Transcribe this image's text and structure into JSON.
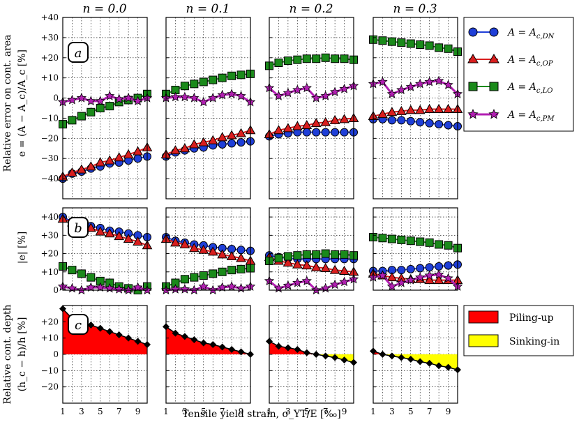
{
  "figure": {
    "column_titles": [
      "n = 0.0",
      "n = 0.1",
      "n = 0.2",
      "n = 0.3"
    ],
    "xlabel": "Tensile yield strain, σ_YT/E [‰]",
    "xticks": [
      "1",
      "3",
      "5",
      "7",
      "9"
    ],
    "colors": {
      "DN": "#1f3fd8",
      "OP": "#d91e1e",
      "LO": "#1a8a1a",
      "PM": "#b21fb2",
      "pile": "#ff0000",
      "sink": "#ffff00"
    }
  },
  "chart_data": [
    {
      "type": "line",
      "panel": "a",
      "ylabel_line1": "Relative error on cont. area",
      "ylabel_line2": "e = (A − A_c)/A_c [%]",
      "ylim": [
        -50,
        40
      ],
      "yticks": [
        "+40",
        "+30",
        "+20",
        "+10",
        "0",
        "−10",
        "−20",
        "−30",
        "−40"
      ],
      "ytick_values": [
        40,
        30,
        20,
        10,
        0,
        -10,
        -20,
        -30,
        -40
      ],
      "x": [
        1,
        2,
        3,
        4,
        5,
        6,
        7,
        8,
        9,
        10
      ],
      "grid": true,
      "legend_position": "right",
      "series": [
        {
          "name": "A = A_c,DN",
          "key": "DN",
          "values": [
            [
              -40,
              -37.5,
              -36.5,
              -35,
              -34,
              -32.5,
              -32,
              -31,
              -30,
              -29
            ],
            [
              -29,
              -27,
              -26,
              -25,
              -24.5,
              -23.5,
              -23,
              -22.5,
              -22,
              -21.5
            ],
            [
              -19,
              -18,
              -17.5,
              -17,
              -17,
              -17,
              -17,
              -17,
              -17,
              -17
            ],
            [
              -10.5,
              -10.5,
              -11,
              -11,
              -11.5,
              -12,
              -12.5,
              -13,
              -13.5,
              -14
            ]
          ]
        },
        {
          "name": "A = A_c,OP",
          "key": "OP",
          "values": [
            [
              -39,
              -37,
              -35.5,
              -34,
              -32,
              -31,
              -29.5,
              -28,
              -26.5,
              -24.5
            ],
            [
              -28,
              -26,
              -25,
              -23,
              -22,
              -21,
              -19.5,
              -18.5,
              -17.5,
              -16
            ],
            [
              -18,
              -16,
              -15,
              -14,
              -13.5,
              -12.5,
              -12,
              -11,
              -10.5,
              -10
            ],
            [
              -9,
              -8,
              -7,
              -6.5,
              -6,
              -6,
              -5.5,
              -5.5,
              -5.5,
              -5.5
            ]
          ]
        },
        {
          "name": "A = A_c,LO",
          "key": "LO",
          "values": [
            [
              -13,
              -11,
              -9,
              -7,
              -5,
              -4,
              -2,
              -1,
              0,
              2
            ],
            [
              2,
              4,
              6,
              7,
              8,
              9,
              10,
              11,
              11.5,
              12
            ],
            [
              16,
              17.5,
              18.5,
              19,
              19.5,
              19.5,
              20,
              19.5,
              19.5,
              19
            ],
            [
              29,
              28.5,
              28,
              27.5,
              27,
              26.5,
              26,
              25,
              24.5,
              23
            ]
          ]
        },
        {
          "name": "A = A_c,PM",
          "key": "PM",
          "values": [
            [
              -2,
              -1,
              0,
              -1.5,
              -1.5,
              1,
              -0.5,
              0,
              -1.5,
              0
            ],
            [
              0,
              0.5,
              0.5,
              0,
              -2,
              0,
              1.5,
              2,
              1,
              -2
            ],
            [
              5,
              1,
              2.5,
              4,
              5,
              0,
              1,
              3,
              4.5,
              6
            ],
            [
              7,
              8,
              2,
              4,
              5.5,
              7,
              8,
              8.5,
              6.5,
              2
            ]
          ]
        }
      ]
    },
    {
      "type": "line",
      "panel": "b",
      "ylabel": "|e| [%]",
      "ylim": [
        0,
        45
      ],
      "yticks": [
        "+40",
        "+30",
        "+20",
        "+10",
        "0"
      ],
      "ytick_values": [
        40,
        30,
        20,
        10,
        0
      ],
      "x": [
        1,
        2,
        3,
        4,
        5,
        6,
        7,
        8,
        9,
        10
      ],
      "grid": true,
      "series": [
        {
          "key": "DN",
          "values": [
            [
              40,
              37.5,
              36.5,
              35,
              34,
              32.5,
              32,
              31,
              30,
              29
            ],
            [
              29,
              27,
              26,
              25,
              24.5,
              23.5,
              23,
              22.5,
              22,
              21.5
            ],
            [
              19,
              18,
              17.5,
              17,
              17,
              17,
              17,
              17,
              17,
              17
            ],
            [
              10.5,
              10.5,
              11,
              11,
              11.5,
              12,
              12.5,
              13,
              13.5,
              14
            ]
          ]
        },
        {
          "key": "OP",
          "values": [
            [
              39,
              37,
              35.5,
              34,
              32,
              31,
              29.5,
              28,
              26.5,
              24.5
            ],
            [
              28,
              26,
              25,
              23,
              22,
              21,
              19.5,
              18.5,
              17.5,
              16
            ],
            [
              18,
              16,
              15,
              14,
              13.5,
              12.5,
              12,
              11,
              10.5,
              10
            ],
            [
              9,
              8,
              7,
              6.5,
              6,
              6,
              5.5,
              5.5,
              5.5,
              5.5
            ]
          ]
        },
        {
          "key": "LO",
          "values": [
            [
              13,
              11,
              9,
              7,
              5,
              4,
              2,
              1,
              0,
              2
            ],
            [
              2,
              4,
              6,
              7,
              8,
              9,
              10,
              11,
              11.5,
              12
            ],
            [
              16,
              17.5,
              18.5,
              19,
              19.5,
              19.5,
              20,
              19.5,
              19.5,
              19
            ],
            [
              29,
              28.5,
              28,
              27.5,
              27,
              26.5,
              26,
              25,
              24.5,
              23
            ]
          ]
        },
        {
          "key": "PM",
          "values": [
            [
              2,
              1,
              0,
              1.5,
              1.5,
              1,
              0.5,
              0,
              1.5,
              0
            ],
            [
              0,
              0.5,
              0.5,
              0,
              2,
              0,
              1.5,
              2,
              1,
              2
            ],
            [
              5,
              1,
              2.5,
              4,
              5,
              0,
              1,
              3,
              4.5,
              6
            ],
            [
              7,
              8,
              2,
              4,
              5.5,
              7,
              8,
              8.5,
              6.5,
              2
            ]
          ]
        }
      ]
    },
    {
      "type": "area",
      "panel": "c",
      "ylabel_line1": "Relative cont. depth",
      "ylabel_line2": "(h_c − h)/h [%]",
      "ylim": [
        -30,
        30
      ],
      "yticks": [
        "+20",
        "+10",
        "0",
        "−10",
        "−20"
      ],
      "ytick_values": [
        20,
        10,
        0,
        -10,
        -20
      ],
      "x": [
        1,
        2,
        3,
        4,
        5,
        6,
        7,
        8,
        9,
        10
      ],
      "grid": true,
      "legend_position": "right",
      "legend": [
        "Piling-up",
        "Sinking-in"
      ],
      "values": [
        [
          28,
          22,
          20,
          18,
          16,
          14,
          12,
          10,
          8,
          6
        ],
        [
          17,
          13,
          11,
          9,
          7,
          6,
          4.5,
          3,
          1.5,
          0
        ],
        [
          8,
          5,
          4,
          3,
          1,
          0,
          -1,
          -2,
          -3.5,
          -5
        ],
        [
          2,
          0,
          -1,
          -2,
          -3,
          -4.5,
          -5.5,
          -7,
          -8,
          -9.5
        ]
      ]
    }
  ],
  "badges": {
    "a": "a",
    "b": "b",
    "c": "c"
  },
  "legend_series_labels": {
    "DN_pre": "A = A",
    "DN_sub": "c,DN",
    "OP_pre": "A = A",
    "OP_sub": "c,OP",
    "LO_pre": "A = A",
    "LO_sub": "c,LO",
    "PM_pre": "A = A",
    "PM_sub": "c,PM"
  }
}
